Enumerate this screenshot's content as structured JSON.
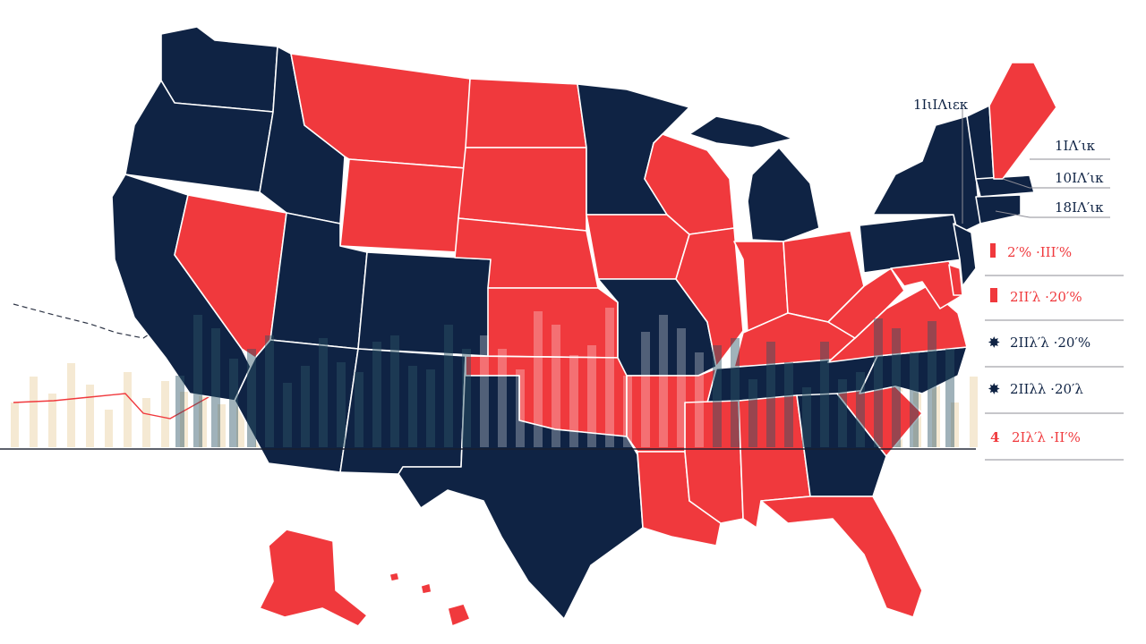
{
  "colors": {
    "navy": "#0f2344",
    "red": "#f0393d",
    "beige": "#f2e2c4",
    "teal": "#2c5566",
    "background": "#ffffff",
    "line": "#8c8c96"
  },
  "legend": {
    "top_label": "1ΙιΙΛιεκ",
    "rows": [
      {
        "text": "1ΙΛ′ικ"
      },
      {
        "text": "10ΙΛ′ικ"
      },
      {
        "text": "18ΙΛ′ικ"
      }
    ],
    "items": [
      {
        "symbol": "I",
        "text": "2′% ·ΙΙΙ′%",
        "color": "red"
      },
      {
        "symbol": "I",
        "text": "2ΙΙ′λ ·20′%",
        "color": "red"
      },
      {
        "symbol": "✸",
        "text": "2ΙΙλ′λ ·20′%",
        "color": "navy"
      },
      {
        "symbol": "✸",
        "text": "2ΙΙλλ ·20′λ",
        "color": "navy"
      },
      {
        "symbol": "4",
        "text": "2Ιλ′λ ·ΙΙ′%",
        "color": "red"
      }
    ]
  },
  "bar_fill_levels": [
    0.42,
    0.66,
    0.5,
    0.78,
    0.58,
    0.35,
    0.7,
    0.46,
    0.62,
    0.52,
    0.8,
    0.4,
    0.58,
    0.72,
    0.44,
    0.66,
    0.54,
    0.76,
    0.38,
    0.6,
    0.7,
    0.48,
    0.82,
    0.56,
    0.64,
    0.42,
    0.74,
    0.5,
    0.68,
    0.58,
    0.44,
    0.78,
    0.52,
    0.62,
    0.7,
    0.4,
    0.66,
    0.56,
    0.74,
    0.48,
    0.6,
    0.8,
    0.46,
    0.64,
    0.54,
    0.72,
    0.4,
    0.68,
    0.58,
    0.62
  ]
}
